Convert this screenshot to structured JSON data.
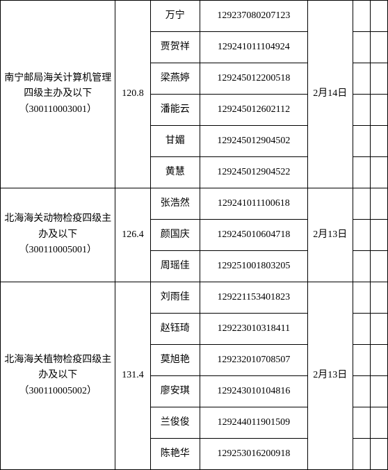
{
  "groups": [
    {
      "position": "南宁邮局海关计算机管理四级主办及以下（300110003001）",
      "score": "120.8",
      "date": "2月14日",
      "rows": [
        {
          "name": "万宁",
          "id": "129237080207123"
        },
        {
          "name": "贾贺祥",
          "id": "129241011104924"
        },
        {
          "name": "梁燕婷",
          "id": "129245012200518"
        },
        {
          "name": "潘能云",
          "id": "129245012602112"
        },
        {
          "name": "甘媚",
          "id": "129245012904502"
        },
        {
          "name": "黄慧",
          "id": "129245012904522"
        }
      ]
    },
    {
      "position": "北海海关动物检疫四级主办及以下（300110005001）",
      "score": "126.4",
      "date": "2月13日",
      "rows": [
        {
          "name": "张浩然",
          "id": "129241011100618"
        },
        {
          "name": "颜国庆",
          "id": "129245010604718"
        },
        {
          "name": "周瑶佳",
          "id": "129251001803205"
        }
      ]
    },
    {
      "position": "北海海关植物检疫四级主办及以下（300110005002）",
      "score": "131.4",
      "date": "2月13日",
      "rows": [
        {
          "name": "刘雨佳",
          "id": "129221153401823"
        },
        {
          "name": "赵钰琦",
          "id": "129223010318411"
        },
        {
          "name": "莫旭艳",
          "id": "129232010708507"
        },
        {
          "name": "廖安琪",
          "id": "129243010104816"
        },
        {
          "name": "兰俊俊",
          "id": "129244011901509"
        },
        {
          "name": "陈艳华",
          "id": "129253016200918"
        }
      ]
    }
  ]
}
